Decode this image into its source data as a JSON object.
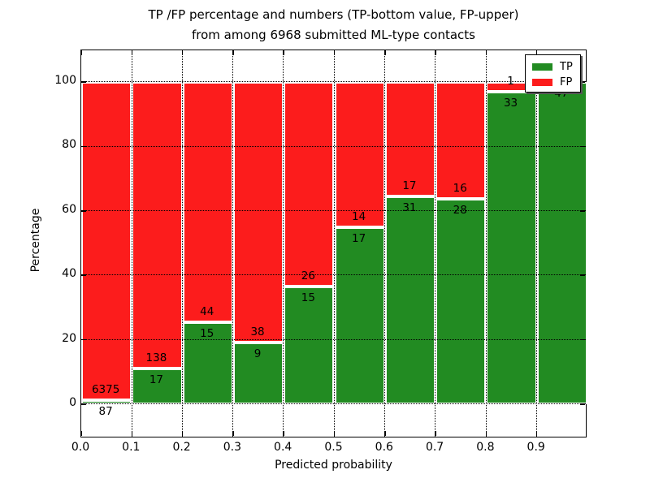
{
  "figure": {
    "title_line1": "TP /FP percentage and numbers (TP-bottom value, FP-upper)",
    "title_line2": "from among 6968 submitted ML-type contacts"
  },
  "axes": {
    "xlabel": "Predicted probability",
    "ylabel": "Percentage",
    "xticklabels": [
      "0.0",
      "0.1",
      "0.2",
      "0.3",
      "0.4",
      "0.5",
      "0.6",
      "0.7",
      "0.8",
      "0.9"
    ],
    "yticks": [
      0,
      20,
      40,
      60,
      80,
      100
    ]
  },
  "legend": {
    "position": "upper right",
    "items": [
      {
        "label": "TP",
        "color": "#228b22"
      },
      {
        "label": "FP",
        "color": "#fc1c1c"
      }
    ]
  },
  "chart_data": {
    "type": "bar",
    "subtype": "stacked-100-percent",
    "title": "TP /FP percentage and numbers (TP-bottom value, FP-upper) from among 6968 submitted ML-type contacts",
    "xlabel": "Predicted probability",
    "ylabel": "Percentage",
    "total_contacts": 6968,
    "bin_width": 0.1,
    "bins": [
      "0.0-0.1",
      "0.1-0.2",
      "0.2-0.3",
      "0.3-0.4",
      "0.4-0.5",
      "0.5-0.6",
      "0.6-0.7",
      "0.7-0.8",
      "0.8-0.9",
      "0.9-1.0"
    ],
    "series": [
      {
        "name": "TP",
        "color": "#228b22",
        "counts": [
          87,
          17,
          15,
          9,
          15,
          17,
          31,
          28,
          33,
          47
        ]
      },
      {
        "name": "FP",
        "color": "#fc1c1c",
        "counts": [
          6375,
          138,
          44,
          38,
          26,
          14,
          17,
          16,
          1,
          0
        ]
      }
    ],
    "tp_percent": [
      1.3,
      11.0,
      25.4,
      19.1,
      36.6,
      54.8,
      64.6,
      63.6,
      97.1,
      100.0
    ],
    "bar_labels_tp": [
      "87",
      "17",
      "15",
      "9",
      "15",
      "17",
      "31",
      "28",
      "33",
      "47"
    ],
    "bar_labels_fp": [
      "6375",
      "138",
      "44",
      "38",
      "26",
      "14",
      "17",
      "16",
      "1",
      ""
    ],
    "ylim": [
      0,
      100
    ],
    "grid": "dotted",
    "legend_position": "upper right"
  }
}
